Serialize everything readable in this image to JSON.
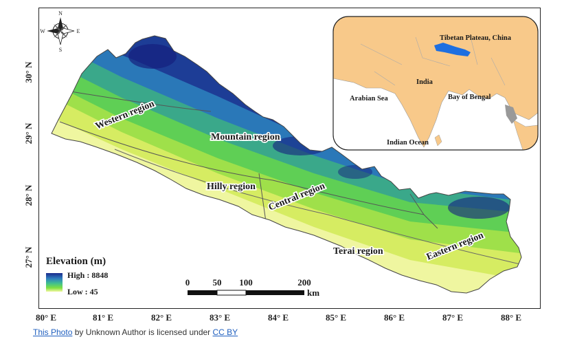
{
  "map": {
    "longitude_ticks": [
      "80° E",
      "81° E",
      "82° E",
      "83° E",
      "84° E",
      "85° E",
      "86° E",
      "87° E",
      "88° E"
    ],
    "latitude_ticks": [
      "30° N",
      "29° N",
      "28° N",
      "27° N"
    ],
    "regions": {
      "western": "Western region",
      "mountain": "Mountain region",
      "hilly": "Hilly region",
      "central": "Central region",
      "terai": "Terai region",
      "eastern": "Eastern region"
    },
    "compass": {
      "n": "N",
      "s": "S",
      "e": "E",
      "w": "W"
    }
  },
  "legend": {
    "title": "Elevation (m)",
    "high": "High : 8848",
    "low": "Low : 45",
    "colors": [
      "#1a2a8c",
      "#2f7fbf",
      "#3fbf8f",
      "#7fe040",
      "#f2f7a0"
    ]
  },
  "scale_bar": {
    "labels": [
      "0",
      "50",
      "100",
      "200"
    ],
    "unit": "km"
  },
  "inset": {
    "labels": {
      "tibet": "Tibetan Plateau, China",
      "india": "India",
      "arabian_sea": "Arabian Sea",
      "bay_of_bengal": "Bay of Bengal",
      "indian_ocean": "Indian Ocean"
    },
    "land_color": "#f8c98a",
    "highlight_color": "#1e6fe0"
  },
  "credit": {
    "photo_link": "This Photo",
    "middle": " by Unknown Author is licensed under ",
    "license_link": "CC BY"
  }
}
